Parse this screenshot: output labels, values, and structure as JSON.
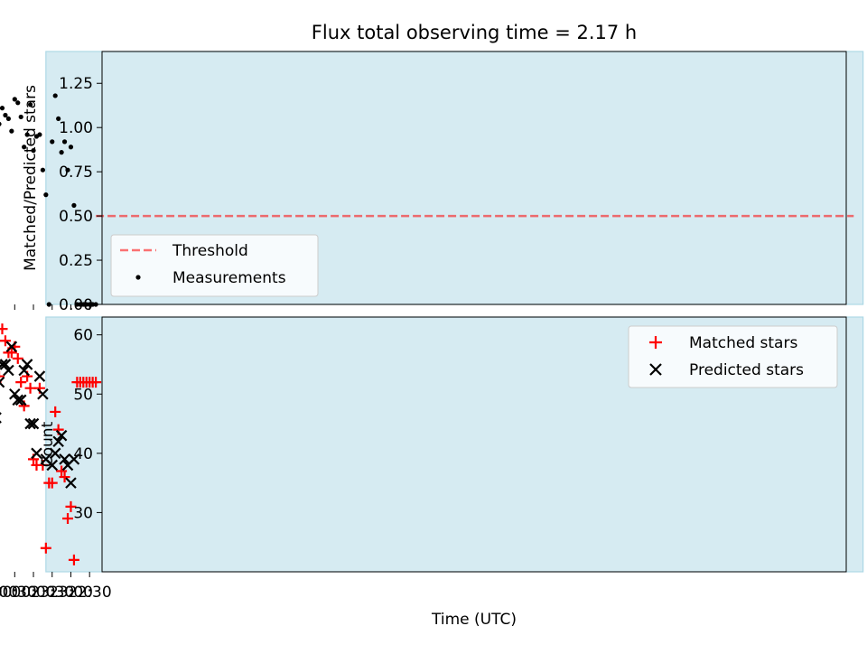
{
  "title": "Flux total observing time = 2.17 h",
  "colors": {
    "observing_span": "#add8e6",
    "threshold": "#ff0000",
    "measurements": "#000000",
    "matched": "#ff0000",
    "predicted": "#000000"
  },
  "chart_data": [
    {
      "type": "scatter",
      "ylabel": "Matched/Predicted stars",
      "ylim": [
        0,
        1.43
      ],
      "yticks": [
        "0.00",
        "0.25",
        "0.50",
        "0.75",
        "1.00",
        "1.25"
      ],
      "ytick_values": [
        0,
        0.25,
        0.5,
        0.75,
        1.0,
        1.25
      ],
      "legend": {
        "placement": "bottom-left",
        "entries": [
          "Threshold",
          "Measurements"
        ]
      },
      "threshold": {
        "name": "Threshold",
        "value": 0.5,
        "x_start": "22:20",
        "x_end": "02:05"
      },
      "shaded_span": [
        "23:40",
        "01:50"
      ],
      "series": [
        {
          "name": "Measurements",
          "x": [
            "22:20",
            "22:25",
            "22:30",
            "22:35",
            "22:40",
            "22:45",
            "22:50",
            "22:55",
            "23:00",
            "23:05",
            "23:10",
            "23:15",
            "23:20",
            "23:25",
            "23:30",
            "23:35",
            "23:40",
            "23:45",
            "23:50",
            "23:55",
            "24:00",
            "24:05",
            "24:10",
            "24:15",
            "24:20",
            "24:25",
            "24:30",
            "24:35",
            "24:40",
            "24:45",
            "24:50",
            "24:55",
            "25:00",
            "25:05",
            "25:10",
            "25:15",
            "25:20",
            "25:25",
            "25:30",
            "25:35",
            "25:40",
            "25:45",
            "25:50",
            "25:55",
            "26:00",
            "26:05"
          ],
          "y": [
            0,
            0,
            0,
            0,
            0,
            0,
            0,
            0.56,
            0.89,
            0.76,
            0.92,
            0.86,
            1.05,
            1.18,
            0.92,
            0,
            0.62,
            0.76,
            0.96,
            0.95,
            0.87,
            1.13,
            0.96,
            0.89,
            1.06,
            1.14,
            1.16,
            0.98,
            1.05,
            1.07,
            1.11,
            1.02,
            1.13,
            1.09,
            1.14,
            1.08,
            0.9,
            0.81,
            1.03,
            1.05,
            1.36,
            0.96,
            1.0,
            0,
            0,
            0
          ]
        }
      ]
    },
    {
      "type": "scatter",
      "xlabel": "Time (UTC)",
      "ylabel": "Count",
      "ylim": [
        20,
        63
      ],
      "yticks": [
        "30",
        "40",
        "50",
        "60"
      ],
      "ytick_values": [
        30,
        40,
        50,
        60
      ],
      "xlim": [
        "22:10",
        "02:17"
      ],
      "xticks": [
        "22:30",
        "23:00",
        "23:30",
        "00:00",
        "00:30",
        "01:00",
        "01:30",
        "02:00"
      ],
      "xtick_values": [
        "22:30",
        "23:00",
        "23:30",
        "24:00",
        "24:30",
        "25:00",
        "25:30",
        "26:00"
      ],
      "legend": {
        "placement": "top-right",
        "entries": [
          "Matched stars",
          "Predicted stars"
        ]
      },
      "shaded_span": [
        "23:40",
        "01:50"
      ],
      "series": [
        {
          "name": "Matched stars",
          "x": [
            "22:20",
            "22:25",
            "22:30",
            "22:35",
            "22:40",
            "22:45",
            "22:50",
            "22:55",
            "23:00",
            "23:05",
            "23:10",
            "23:15",
            "23:20",
            "23:25",
            "23:30",
            "23:35",
            "23:40",
            "23:45",
            "23:50",
            "23:55",
            "24:00",
            "24:05",
            "24:10",
            "24:15",
            "24:20",
            "24:25",
            "24:30",
            "24:35",
            "24:40",
            "24:45",
            "24:50",
            "24:55",
            "25:00",
            "25:05",
            "25:10",
            "25:15",
            "25:20",
            "25:25",
            "25:30",
            "25:35",
            "25:40",
            "25:45",
            "25:50",
            "25:55",
            "26:00",
            "26:05"
          ],
          "y": [
            52,
            52,
            52,
            52,
            52,
            52,
            52,
            22,
            31,
            29,
            36,
            37,
            44,
            47,
            35,
            35,
            24,
            38,
            51,
            38,
            39,
            51,
            53,
            48,
            52,
            56,
            58,
            57,
            57,
            59,
            61,
            53,
            52,
            50,
            48,
            43,
            38,
            38,
            42,
            37,
            38,
            27,
            24,
            24,
            24,
            24
          ]
        },
        {
          "name": "Predicted stars",
          "x": [
            "22:55",
            "23:00",
            "23:05",
            "23:10",
            "23:15",
            "23:20",
            "23:25",
            "23:30",
            "23:40",
            "23:45",
            "23:50",
            "23:55",
            "24:00",
            "24:05",
            "24:10",
            "24:15",
            "24:20",
            "24:25",
            "24:30",
            "24:35",
            "24:40",
            "24:45",
            "24:50",
            "24:55",
            "25:00",
            "25:05",
            "25:10",
            "25:15",
            "25:20",
            "25:25",
            "25:30",
            "25:35",
            "25:40",
            "25:45",
            "25:50"
          ],
          "y": [
            39,
            35,
            38,
            39,
            43,
            42,
            40,
            38,
            39,
            50,
            53,
            40,
            45,
            45,
            55,
            54,
            49,
            49,
            50,
            58,
            54,
            55,
            55,
            52,
            46,
            46,
            42,
            40,
            42,
            47,
            41,
            35,
            28,
            28,
            24
          ]
        }
      ]
    }
  ]
}
